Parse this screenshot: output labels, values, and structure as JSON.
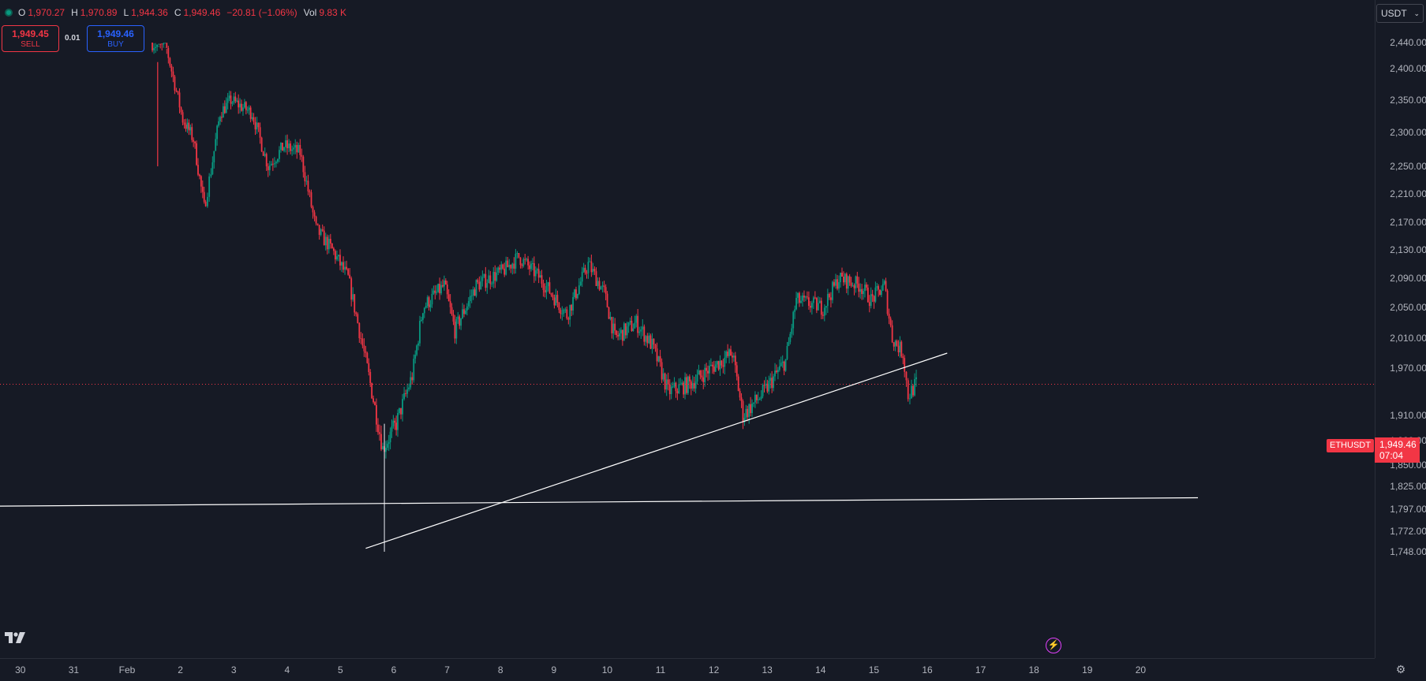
{
  "ohlc": {
    "open_label": "O",
    "open": "1,970.27",
    "high_label": "H",
    "high": "1,970.89",
    "low_label": "L",
    "low": "1,944.36",
    "close_label": "C",
    "close": "1,949.46",
    "change": "−20.81 (−1.06%)",
    "vol_label": "Vol",
    "volume": "9.83 K"
  },
  "trade": {
    "sell_price": "1,949.45",
    "sell_label": "SELL",
    "buy_price": "1,949.46",
    "buy_label": "BUY",
    "spread": "0.01"
  },
  "currency": {
    "selected": "USDT"
  },
  "symbol_tag": "ETHUSDT",
  "last_price": {
    "price": "1,949.46",
    "countdown": "07:04"
  },
  "colors": {
    "up": "#089981",
    "down": "#f23645",
    "background": "#161a25",
    "accent_buy": "#2962ff",
    "line": "#ffffff"
  },
  "icons": {
    "logo": "tradingview-logo-icon",
    "flash": "lightning-icon",
    "settings": "gear-icon"
  },
  "price_axis_labels": [
    "2,440.00",
    "2,400.00",
    "2,350.00",
    "2,300.00",
    "2,250.00",
    "2,210.00",
    "2,170.00",
    "2,130.00",
    "2,090.00",
    "2,050.00",
    "2,010.00",
    "1,970.00",
    "1,910.00",
    "1,880.00",
    "1,850.00",
    "1,825.00",
    "1,797.00",
    "1,772.00",
    "1,748.00"
  ],
  "time_axis_labels": [
    "30",
    "31",
    "Feb",
    "2",
    "3",
    "4",
    "5",
    "6",
    "7",
    "8",
    "9",
    "10",
    "11",
    "12",
    "13",
    "14",
    "15",
    "16",
    "17",
    "18",
    "19",
    "20"
  ],
  "chart_data": {
    "type": "candlestick",
    "symbol": "ETHUSDT",
    "ylim": [
      1735,
      2470
    ],
    "x_days": [
      -3,
      21
    ],
    "key_points": [
      {
        "t": 1.4,
        "price": 2440
      },
      {
        "t": 1.7,
        "price": 2430
      },
      {
        "t": 2.0,
        "price": 2320
      },
      {
        "t": 2.2,
        "price": 2290
      },
      {
        "t": 2.4,
        "price": 2190
      },
      {
        "t": 2.5,
        "price": 2230
      },
      {
        "t": 2.7,
        "price": 2330
      },
      {
        "t": 2.9,
        "price": 2350
      },
      {
        "t": 3.3,
        "price": 2330
      },
      {
        "t": 3.6,
        "price": 2250
      },
      {
        "t": 3.9,
        "price": 2280
      },
      {
        "t": 4.2,
        "price": 2270
      },
      {
        "t": 4.5,
        "price": 2160
      },
      {
        "t": 4.8,
        "price": 2130
      },
      {
        "t": 5.1,
        "price": 2090
      },
      {
        "t": 5.4,
        "price": 1990
      },
      {
        "t": 5.6,
        "price": 1920
      },
      {
        "t": 5.75,
        "price": 1870
      },
      {
        "t": 6.0,
        "price": 1900
      },
      {
        "t": 6.3,
        "price": 1960
      },
      {
        "t": 6.5,
        "price": 2050
      },
      {
        "t": 6.9,
        "price": 2080
      },
      {
        "t": 7.1,
        "price": 2020
      },
      {
        "t": 7.5,
        "price": 2080
      },
      {
        "t": 8.0,
        "price": 2100
      },
      {
        "t": 8.3,
        "price": 2120
      },
      {
        "t": 8.7,
        "price": 2090
      },
      {
        "t": 9.2,
        "price": 2040
      },
      {
        "t": 9.6,
        "price": 2110
      },
      {
        "t": 9.9,
        "price": 2070
      },
      {
        "t": 10.1,
        "price": 2010
      },
      {
        "t": 10.5,
        "price": 2030
      },
      {
        "t": 10.8,
        "price": 2000
      },
      {
        "t": 11.1,
        "price": 1940
      },
      {
        "t": 11.5,
        "price": 1950
      },
      {
        "t": 11.9,
        "price": 1970
      },
      {
        "t": 12.3,
        "price": 1990
      },
      {
        "t": 12.5,
        "price": 1910
      },
      {
        "t": 12.9,
        "price": 1940
      },
      {
        "t": 13.3,
        "price": 1980
      },
      {
        "t": 13.5,
        "price": 2060
      },
      {
        "t": 14.0,
        "price": 2050
      },
      {
        "t": 14.3,
        "price": 2090
      },
      {
        "t": 14.7,
        "price": 2080
      },
      {
        "t": 14.9,
        "price": 2060
      },
      {
        "t": 15.15,
        "price": 2080
      },
      {
        "t": 15.3,
        "price": 2010
      },
      {
        "t": 15.5,
        "price": 1990
      },
      {
        "t": 15.6,
        "price": 1935
      },
      {
        "t": 15.75,
        "price": 1950
      }
    ],
    "extreme_wicks": [
      {
        "t": 1.5,
        "high": 2470,
        "low": 2250
      },
      {
        "t": 5.75,
        "low": 1748
      }
    ],
    "current_price": 1949.46,
    "trendlines": [
      {
        "t1": 5.4,
        "p1": 1752,
        "t2": 16.3,
        "p2": 1990
      },
      {
        "t1": -3,
        "p1": 1800,
        "t2": 21,
        "p2": 1811
      }
    ]
  }
}
